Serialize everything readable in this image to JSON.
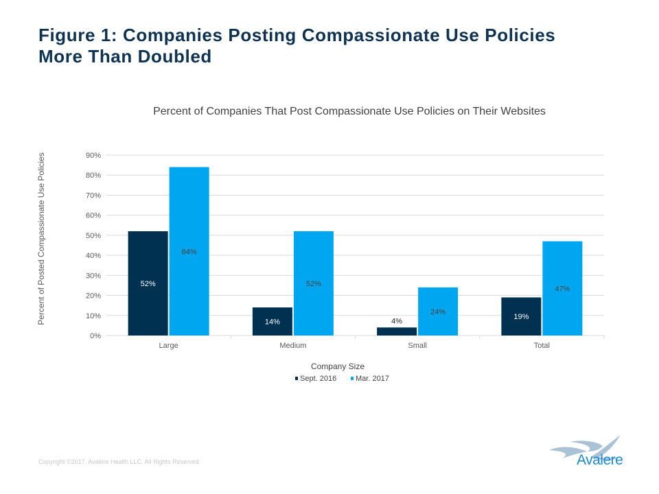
{
  "slide": {
    "title_line1": "Figure 1: Companies Posting Compassionate Use Policies",
    "title_line2": "More Than Doubled",
    "copyright": "Copyright ©2017. Avalere Health LLC. All Rights Reserved.",
    "logo_text": "Avalere"
  },
  "chart_data": {
    "type": "bar",
    "title": "Percent of Companies That Post Compassionate Use Policies on Their Websites",
    "xlabel": "Company Size",
    "ylabel": "Percent of Posted Compassionate Use Policies",
    "categories": [
      "Large",
      "Medium",
      "Small",
      "Total"
    ],
    "series": [
      {
        "name": "Sept. 2016",
        "values": [
          52,
          14,
          4,
          19
        ],
        "labels": [
          "52%",
          "14%",
          "4%",
          "19%"
        ],
        "color": "#003150"
      },
      {
        "name": "Mar. 2017",
        "values": [
          84,
          52,
          24,
          47
        ],
        "labels": [
          "84%",
          "52%",
          "24%",
          "47%"
        ],
        "color": "#00a6ef"
      }
    ],
    "ylim": [
      0,
      90
    ],
    "yticks": [
      "0%",
      "10%",
      "20%",
      "30%",
      "40%",
      "50%",
      "60%",
      "70%",
      "80%",
      "90%"
    ],
    "grid": true,
    "legend_position": "bottom"
  }
}
